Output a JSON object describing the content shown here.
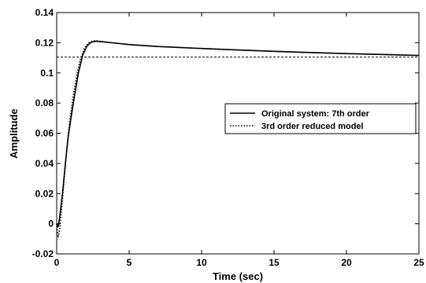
{
  "chart_data": {
    "type": "line",
    "title": "",
    "xlabel": "Time (sec)",
    "ylabel": "Amplitude",
    "xlim": [
      0,
      25
    ],
    "ylim": [
      -0.02,
      0.14
    ],
    "xticks": [
      0,
      5,
      10,
      15,
      20,
      25
    ],
    "xtick_labels": [
      "0",
      "5",
      "10",
      "15",
      "20",
      "25"
    ],
    "yticks": [
      -0.02,
      0,
      0.02,
      0.04,
      0.06,
      0.08,
      0.1,
      0.12,
      0.14
    ],
    "ytick_labels": [
      "-0.02",
      "0",
      "0.02",
      "0.04",
      "0.06",
      "0.08",
      "0.1",
      "0.12",
      "0.14"
    ],
    "grid": false,
    "legend_position": "center-right",
    "reference_line": {
      "style": "dashed",
      "y": 0.1105
    },
    "series": [
      {
        "name": "Original system: 7th order",
        "style": "solid",
        "color": "#000000",
        "x": [
          0,
          0.1,
          0.2,
          0.4,
          0.6,
          0.8,
          1.0,
          1.2,
          1.5,
          1.8,
          2.1,
          2.4,
          2.7,
          3.0,
          4,
          5,
          7,
          10,
          12.5,
          15,
          17.5,
          20,
          22.5,
          25
        ],
        "y": [
          0,
          -0.002,
          0.004,
          0.02,
          0.04,
          0.058,
          0.071,
          0.083,
          0.1,
          0.112,
          0.118,
          0.1205,
          0.121,
          0.1208,
          0.1198,
          0.1188,
          0.1175,
          0.1162,
          0.1152,
          0.1143,
          0.1135,
          0.1128,
          0.1122,
          0.1116
        ]
      },
      {
        "name": "3rd order reduced model",
        "style": "dotted",
        "color": "#000000",
        "x": [
          0,
          0.1,
          0.2,
          0.3,
          0.5,
          0.7,
          0.9,
          1.1,
          1.3,
          1.6,
          1.9,
          2.2,
          2.5,
          2.8,
          3.0,
          4,
          5,
          7,
          10,
          12.5,
          15,
          17.5,
          20,
          22.5,
          25
        ],
        "y": [
          0,
          -0.009,
          -0.004,
          0.006,
          0.028,
          0.05,
          0.068,
          0.082,
          0.094,
          0.108,
          0.116,
          0.12,
          0.1212,
          0.1212,
          0.1209,
          0.1198,
          0.1188,
          0.1175,
          0.1162,
          0.1152,
          0.1143,
          0.1135,
          0.1128,
          0.1122,
          0.1116
        ]
      }
    ]
  }
}
